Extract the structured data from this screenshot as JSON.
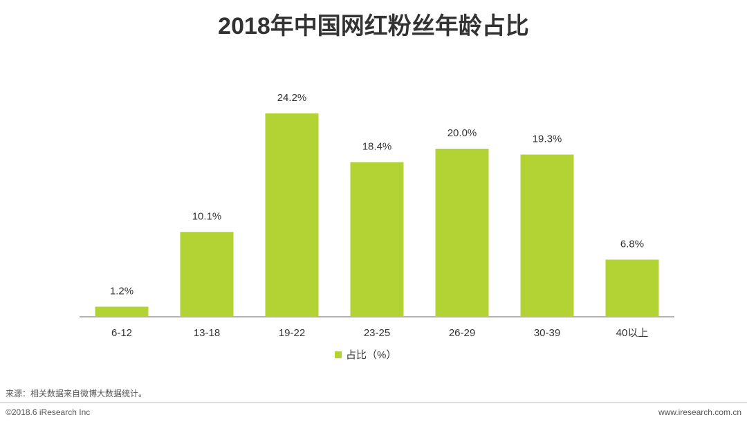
{
  "chart_data": {
    "type": "bar",
    "title": "2018年中国网红粉丝年龄占比",
    "categories": [
      "6-12",
      "13-18",
      "19-22",
      "23-25",
      "26-29",
      "30-39",
      "40以上"
    ],
    "series": [
      {
        "name": "占比（%）",
        "color": "#b3d234",
        "values": [
          1.2,
          10.1,
          24.2,
          18.4,
          20.0,
          19.3,
          6.8
        ],
        "value_labels": [
          "1.2%",
          "10.1%",
          "24.2%",
          "18.4%",
          "20.0%",
          "19.3%",
          "6.8%"
        ]
      }
    ],
    "source": "来源：相关数据来自微博大数据统计。",
    "copyright": "©2018.6 iResearch Inc",
    "website": "www.iresearch.com.cn"
  }
}
